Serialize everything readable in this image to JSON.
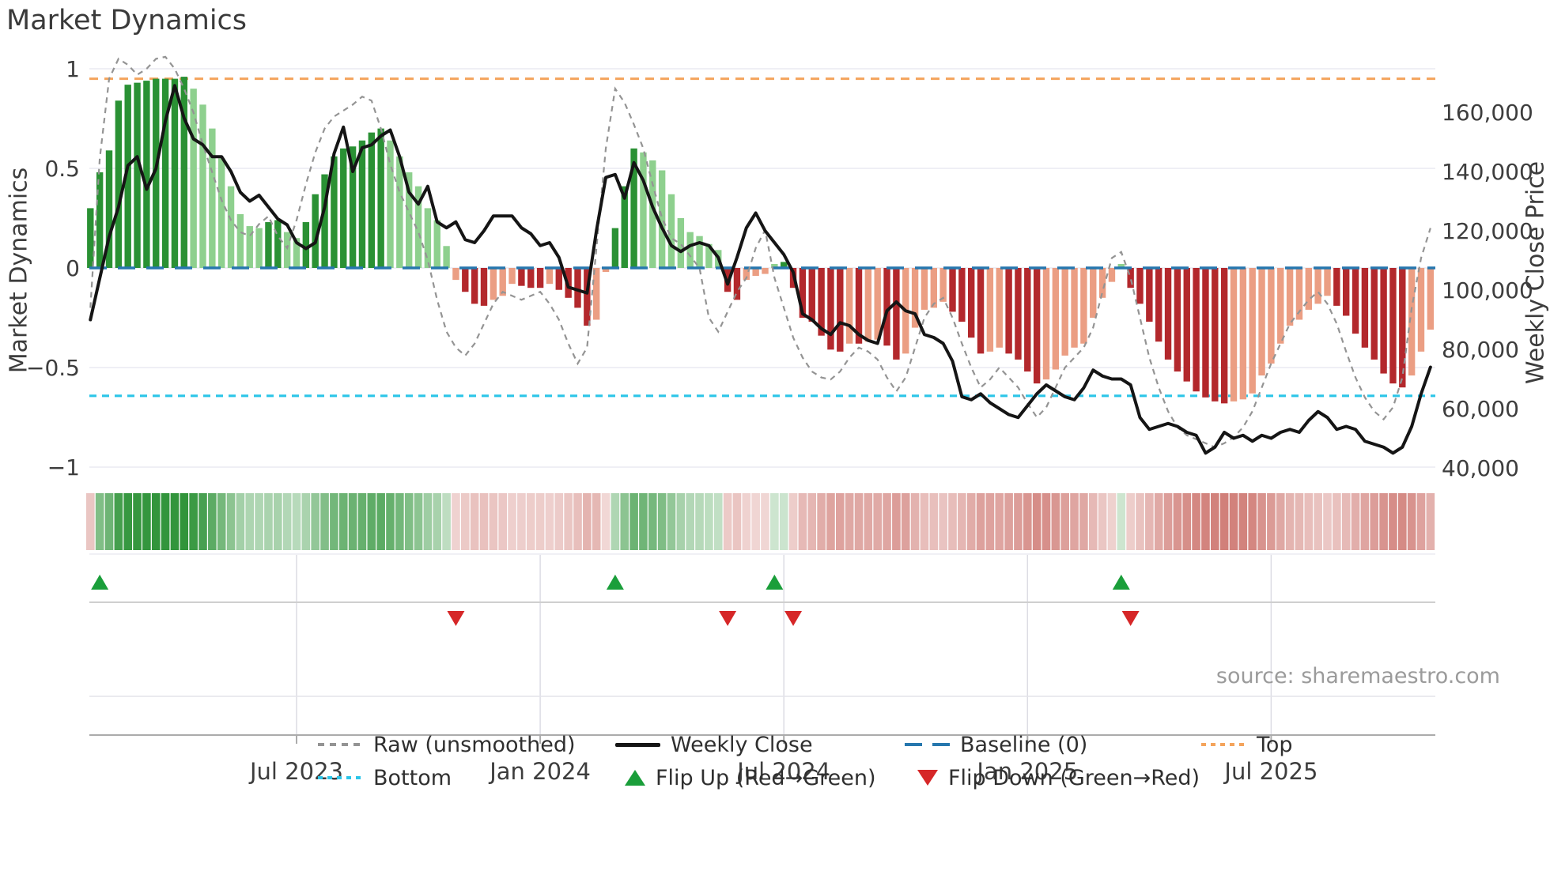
{
  "header": {
    "title": "Market Dynamics"
  },
  "source_note": "source: sharemaestro.com",
  "colors": {
    "bar_strong_green": "#2a9134",
    "bar_weak_green": "#8ed08e",
    "bar_strong_red": "#b3282c",
    "bar_weak_red": "#eb9e83",
    "heat_green": "#2a9134",
    "heat_red": "#c2564e",
    "baseline_blue": "#2677ae",
    "top_orange": "#f4a45c",
    "bottom_cyan": "#2cc5e8",
    "raw_gray": "#949494",
    "price_black": "#151515",
    "flip_up_green": "#1a9e3a",
    "flip_down_red": "#d62728",
    "grid": "#eaeaf2",
    "tick_text": "#3d3d3d"
  },
  "chart_data": {
    "type": "bar",
    "subtype": "weekly combo: oscillator bars + dashed raw line (left axis) + price line (right axis) + heatmap strip + flip markers",
    "title": "Market Dynamics",
    "weeks": 144,
    "left_axis": {
      "label": "Market Dynamics",
      "ticks": [
        1,
        0.5,
        0,
        -0.5,
        -1
      ],
      "tick_labels": [
        "1",
        "0.5",
        "0",
        "−0.5",
        "−1"
      ],
      "range": [
        -1.1,
        1.1
      ]
    },
    "right_axis": {
      "label": "Weekly Close Price",
      "ticks": [
        160000,
        140000,
        120000,
        100000,
        80000,
        60000,
        40000
      ],
      "tick_labels": [
        "160,000",
        "140,000",
        "120,000",
        "100,000",
        "80,000",
        "60,000",
        "40,000"
      ],
      "range": [
        35000,
        175000
      ]
    },
    "x_ticks": [
      {
        "week": 22,
        "label": "Jul 2023"
      },
      {
        "week": 48,
        "label": "Jan 2024"
      },
      {
        "week": 74,
        "label": "Jul 2024"
      },
      {
        "week": 100,
        "label": "Jan 2025"
      },
      {
        "week": 126,
        "label": "Jul 2025"
      }
    ],
    "reference_lines": {
      "baseline": 0,
      "top": 0.95,
      "bottom": -0.65
    },
    "flip_up_weeks": [
      1,
      56,
      73,
      110
    ],
    "flip_down_weeks": [
      39,
      68,
      75,
      111
    ],
    "series": [
      {
        "name": "Market Dynamics (smoothed bars)",
        "type": "bar",
        "axis": "left",
        "values": [
          0.3,
          0.48,
          0.59,
          0.84,
          0.92,
          0.93,
          0.94,
          0.95,
          0.95,
          0.95,
          0.96,
          0.9,
          0.82,
          0.7,
          0.55,
          0.41,
          0.27,
          0.21,
          0.2,
          0.23,
          0.24,
          0.18,
          0.15,
          0.23,
          0.37,
          0.47,
          0.56,
          0.6,
          0.61,
          0.64,
          0.68,
          0.7,
          0.64,
          0.56,
          0.48,
          0.41,
          0.3,
          0.24,
          0.11,
          -0.06,
          -0.12,
          -0.18,
          -0.19,
          -0.16,
          -0.14,
          -0.08,
          -0.09,
          -0.1,
          -0.1,
          -0.08,
          -0.11,
          -0.15,
          -0.2,
          -0.29,
          -0.26,
          -0.02,
          0.2,
          0.41,
          0.6,
          0.58,
          0.54,
          0.49,
          0.37,
          0.25,
          0.18,
          0.16,
          0.12,
          0.09,
          -0.12,
          -0.16,
          -0.06,
          -0.04,
          -0.03,
          0.02,
          0.03,
          -0.1,
          -0.25,
          -0.27,
          -0.34,
          -0.41,
          -0.42,
          -0.38,
          -0.38,
          -0.37,
          -0.36,
          -0.39,
          -0.46,
          -0.43,
          -0.3,
          -0.21,
          -0.2,
          -0.17,
          -0.22,
          -0.27,
          -0.35,
          -0.43,
          -0.42,
          -0.4,
          -0.43,
          -0.46,
          -0.52,
          -0.58,
          -0.56,
          -0.51,
          -0.44,
          -0.4,
          -0.38,
          -0.25,
          -0.15,
          -0.07,
          0.02,
          -0.1,
          -0.18,
          -0.27,
          -0.37,
          -0.46,
          -0.52,
          -0.57,
          -0.62,
          -0.65,
          -0.67,
          -0.68,
          -0.67,
          -0.66,
          -0.63,
          -0.54,
          -0.48,
          -0.38,
          -0.29,
          -0.26,
          -0.21,
          -0.18,
          -0.14,
          -0.19,
          -0.24,
          -0.33,
          -0.4,
          -0.46,
          -0.53,
          -0.58,
          -0.6,
          -0.54,
          -0.42,
          -0.31
        ]
      },
      {
        "name": "Raw (unsmoothed)",
        "type": "line",
        "style": "dashed",
        "axis": "left",
        "values": [
          -0.2,
          0.55,
          0.95,
          1.05,
          1.02,
          0.97,
          1.0,
          1.05,
          1.06,
          1.0,
          0.9,
          0.78,
          0.62,
          0.48,
          0.34,
          0.24,
          0.18,
          0.16,
          0.22,
          0.26,
          0.16,
          0.1,
          0.24,
          0.42,
          0.58,
          0.7,
          0.76,
          0.79,
          0.82,
          0.86,
          0.84,
          0.7,
          0.52,
          0.38,
          0.28,
          0.18,
          0.04,
          -0.16,
          -0.32,
          -0.4,
          -0.44,
          -0.38,
          -0.28,
          -0.18,
          -0.12,
          -0.14,
          -0.16,
          -0.14,
          -0.12,
          -0.18,
          -0.26,
          -0.38,
          -0.48,
          -0.4,
          0.1,
          0.6,
          0.9,
          0.83,
          0.72,
          0.6,
          0.42,
          0.25,
          0.15,
          0.12,
          0.06,
          0.0,
          -0.25,
          -0.32,
          -0.22,
          -0.12,
          -0.05,
          0.1,
          0.19,
          -0.05,
          -0.2,
          -0.35,
          -0.45,
          -0.52,
          -0.55,
          -0.56,
          -0.52,
          -0.45,
          -0.4,
          -0.42,
          -0.46,
          -0.55,
          -0.62,
          -0.55,
          -0.4,
          -0.25,
          -0.18,
          -0.15,
          -0.25,
          -0.38,
          -0.5,
          -0.6,
          -0.56,
          -0.5,
          -0.55,
          -0.6,
          -0.68,
          -0.75,
          -0.7,
          -0.6,
          -0.5,
          -0.45,
          -0.4,
          -0.3,
          -0.12,
          0.05,
          0.08,
          -0.05,
          -0.25,
          -0.45,
          -0.6,
          -0.72,
          -0.8,
          -0.84,
          -0.86,
          -0.88,
          -0.9,
          -0.88,
          -0.85,
          -0.8,
          -0.72,
          -0.6,
          -0.48,
          -0.38,
          -0.28,
          -0.22,
          -0.16,
          -0.12,
          -0.18,
          -0.28,
          -0.42,
          -0.55,
          -0.65,
          -0.72,
          -0.76,
          -0.7,
          -0.55,
          -0.2,
          0.05,
          0.2
        ]
      },
      {
        "name": "Weekly Close",
        "type": "line",
        "axis": "right",
        "values": [
          90000,
          104000,
          118000,
          128000,
          142000,
          145000,
          134000,
          141000,
          157000,
          169000,
          158000,
          151000,
          149000,
          145000,
          145000,
          140000,
          133000,
          130000,
          132000,
          128000,
          124000,
          122000,
          116000,
          114000,
          116000,
          128000,
          146000,
          155000,
          140000,
          148000,
          149000,
          152000,
          154000,
          145000,
          133000,
          129000,
          135000,
          123000,
          121000,
          123000,
          117000,
          116000,
          120000,
          125000,
          125000,
          125000,
          121000,
          119000,
          115000,
          116000,
          111000,
          101000,
          100000,
          99000,
          120000,
          138000,
          139000,
          131000,
          143000,
          137000,
          128000,
          121000,
          115000,
          113000,
          115000,
          116000,
          115000,
          111000,
          102000,
          111000,
          121000,
          126000,
          120000,
          116000,
          112000,
          106000,
          92000,
          90000,
          87000,
          85000,
          89000,
          88000,
          85000,
          83000,
          82000,
          93000,
          96000,
          93000,
          92000,
          85000,
          84000,
          82000,
          76000,
          64000,
          63000,
          65000,
          62000,
          60000,
          58000,
          57000,
          61000,
          65000,
          68000,
          66000,
          64000,
          63000,
          67000,
          73000,
          71000,
          70000,
          70000,
          68000,
          57000,
          53000,
          54000,
          55000,
          54000,
          52000,
          51000,
          45000,
          47000,
          52000,
          50000,
          51000,
          49000,
          51000,
          50000,
          52000,
          53000,
          52000,
          56000,
          59000,
          57000,
          53000,
          54000,
          53000,
          49000,
          48000,
          47000,
          45000,
          47000,
          54000,
          65000,
          74000
        ]
      }
    ],
    "heatmap_strip": {
      "description": "one cell per week; hue = bar sign, intensity = |bar value|",
      "rows": 1
    },
    "legend_position": "bottom"
  },
  "legend": {
    "rows": [
      [
        {
          "label": "Raw (unsmoothed)",
          "swatch": "dashes-sm",
          "color": "#949494"
        },
        {
          "label": "Weekly Close",
          "swatch": "line",
          "color": "#151515"
        },
        {
          "label": "Baseline (0)",
          "swatch": "dashes-lg",
          "color": "#2677ae"
        },
        {
          "label": "Top",
          "swatch": "dots",
          "color": "#f4a45c"
        }
      ],
      [
        {
          "label": "Bottom",
          "swatch": "dots",
          "color": "#2cc5e8"
        },
        {
          "label": "Flip Up (Red→Green)",
          "swatch": "tri-up",
          "color": "#1a9e3a"
        },
        {
          "label": "Flip Down (Green→Red)",
          "swatch": "tri-down",
          "color": "#d62728"
        }
      ]
    ]
  }
}
